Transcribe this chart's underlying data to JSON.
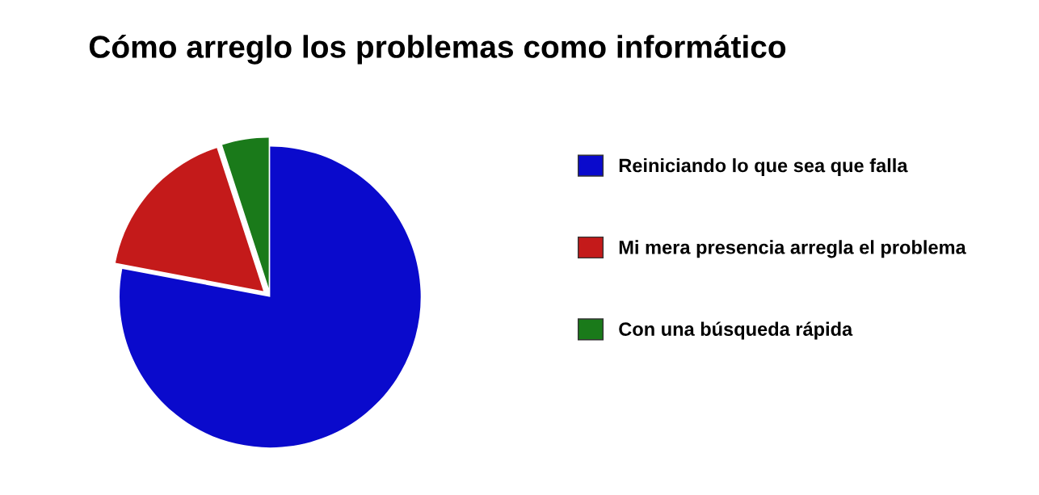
{
  "chart_data": {
    "type": "pie",
    "title": "Cómo arreglo los problemas como informático",
    "categories": [
      "Reiniciando lo que sea que falla",
      "Mi mera presencia arregla el problema",
      "Con una búsqueda rápida"
    ],
    "values": [
      78,
      17,
      5
    ],
    "colors": [
      "#0a0acc",
      "#c41a1a",
      "#1a7a1a"
    ],
    "legend": "right"
  }
}
